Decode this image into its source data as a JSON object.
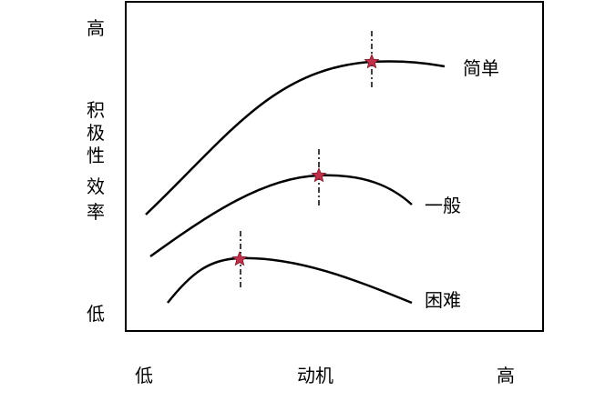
{
  "y_axis": {
    "high": "高",
    "low": "低",
    "label_line1": [
      "积",
      "极",
      "性"
    ],
    "label_line2": [
      "效",
      "率"
    ]
  },
  "x_axis": {
    "low": "低",
    "label": "动机",
    "high": "高"
  },
  "curves": [
    {
      "id": "easy",
      "label": "简单"
    },
    {
      "id": "medium",
      "label": "一般"
    },
    {
      "id": "hard",
      "label": "困难"
    }
  ],
  "colors": {
    "line": "#000000",
    "star": "#c0304a",
    "star_stroke": "#7a1a2a"
  }
}
